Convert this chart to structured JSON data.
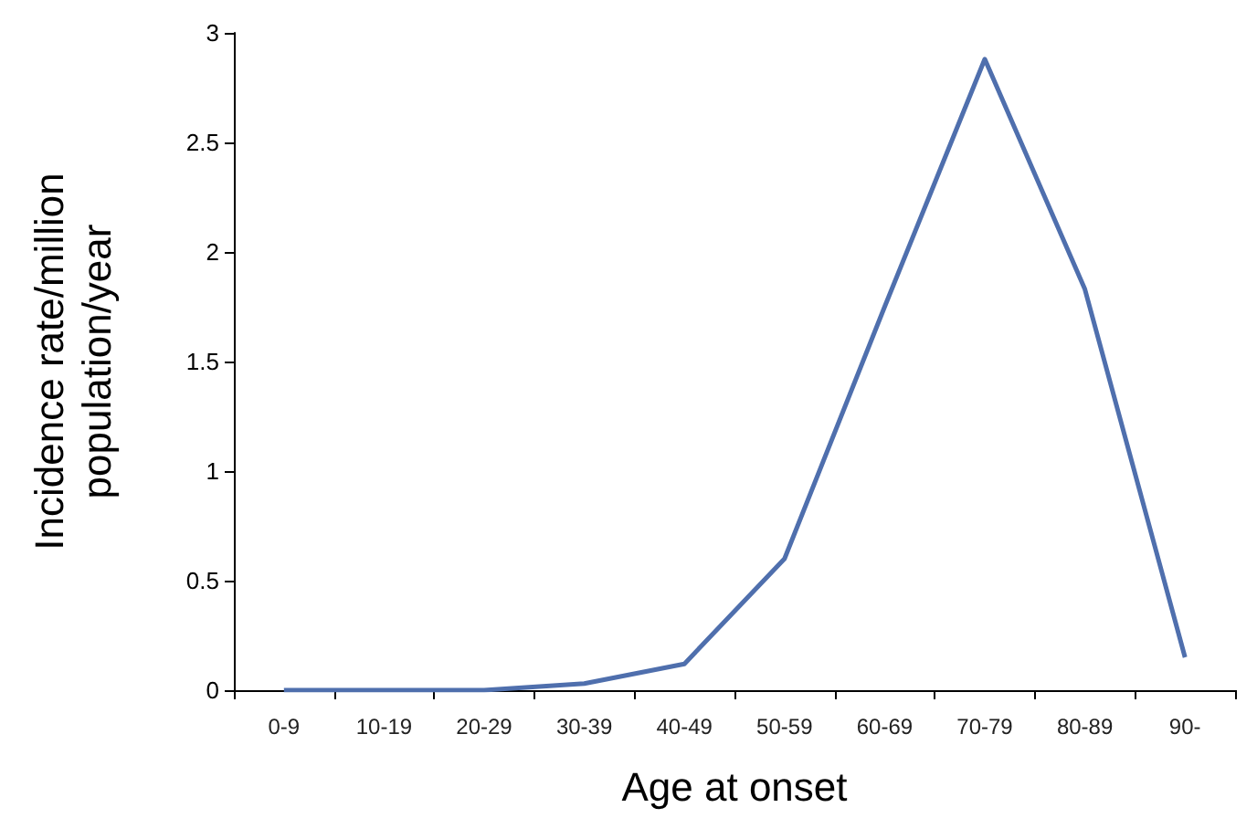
{
  "chart_data": {
    "type": "line",
    "xlabel": "Age at onset",
    "ylabel": "Incidence rate/million\npopulation/year",
    "categories": [
      "0-9",
      "10-19",
      "20-29",
      "30-39",
      "40-49",
      "50-59",
      "60-69",
      "70-79",
      "80-89",
      "90-"
    ],
    "series": [
      {
        "color": "#4f6fad",
        "values": [
          0,
          0,
          0,
          0.03,
          0.12,
          0.6,
          1.75,
          2.88,
          1.83,
          0.15
        ]
      }
    ],
    "ylim": [
      0,
      3
    ],
    "yticks": [
      0,
      0.5,
      1,
      1.5,
      2,
      2.5,
      3
    ],
    "grid": false,
    "marker": "none",
    "line_style": "solid"
  }
}
